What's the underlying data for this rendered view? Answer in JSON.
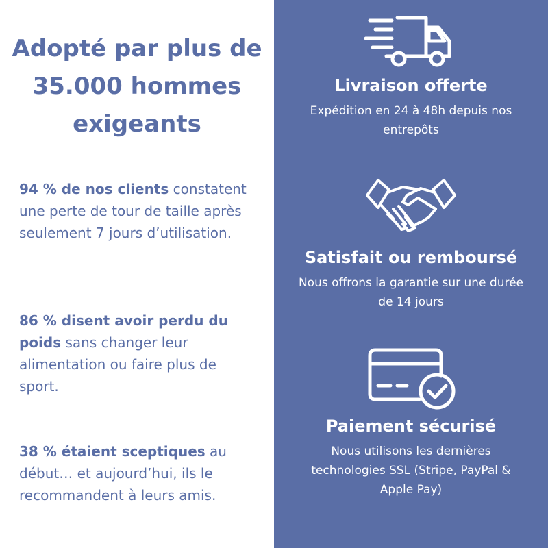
{
  "left": {
    "headline": "Adopté par plus de 35.000 hommes exigeants",
    "stats": [
      {
        "highlight": "94 % de nos clients",
        "text": " constatent une perte de tour de taille après seulement 7 jours d’utilisation."
      },
      {
        "highlight": "86 % disent avoir perdu du poids",
        "text": " sans changer leur alimentation ou faire plus de sport."
      },
      {
        "highlight": "38 % étaient sceptiques",
        "text": " au début… et aujourd’hui, ils le recommandent à leurs amis."
      }
    ]
  },
  "right": {
    "features": [
      {
        "icon": "delivery-truck-icon",
        "title": "Livraison offerte",
        "description": "Expédition en 24 à 48h depuis nos entrepôts"
      },
      {
        "icon": "handshake-icon",
        "title": "Satisfait ou remboursé",
        "description": "Nous offrons la garantie sur une durée de 14 jours"
      },
      {
        "icon": "credit-card-check-icon",
        "title": "Paiement sécurisé",
        "description": "Nous utilisons les dernières technologies SSL (Stripe, PayPal & Apple Pay)"
      }
    ]
  },
  "colors": {
    "accent": "#5a6ea6",
    "background": "#ffffff",
    "text_on_accent": "#ffffff"
  }
}
